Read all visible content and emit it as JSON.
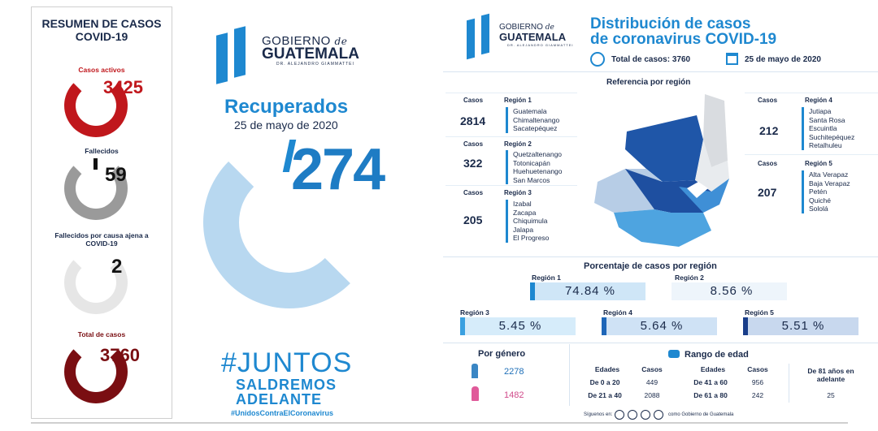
{
  "left": {
    "title": "RESUMEN DE CASOS COVID-19",
    "activos_label": "Casos activos",
    "activos_value": "3425",
    "fallecidos_label": "Fallecidos",
    "fallecidos_value": "59",
    "ajena_label": "Fallecidos por causa ajena a COVID-19",
    "ajena_value": "2",
    "total_label": "Total de casos",
    "total_value": "3760"
  },
  "logo": {
    "line1": "GOBIERNO",
    "de": "de",
    "line2": "GUATEMALA",
    "sub": "DR. ALEJANDRO GIAMMATTEI"
  },
  "middle": {
    "title": "Recuperados",
    "date": "25 de mayo de 2020",
    "value": "274",
    "hashtag": "#JUNTOS",
    "line2": "SALDREMOS",
    "line3": "ADELANTE",
    "footer_tag": "#UnidosContraElCoronavirus"
  },
  "right": {
    "title1": "Distribución de casos",
    "title2": "de coronavirus COVID-19",
    "total_label": "Total de casos: 3760",
    "date": "25 de mayo de 2020",
    "ref_title": "Referencia por región",
    "casos_label": "Casos",
    "regions": [
      {
        "name": "Región 1",
        "cases": "2814",
        "deps": "Guatemala\nChimaltenango\nSacatepéquez"
      },
      {
        "name": "Región 2",
        "cases": "322",
        "deps": "Quetzaltenango\nTotonicapán\nHuehuetenango\nSan Marcos"
      },
      {
        "name": "Región 3",
        "cases": "205",
        "deps": "Izabal\nZacapa\nChiquimula\nJalapa\nEl Progreso"
      },
      {
        "name": "Región 4",
        "cases": "212",
        "deps": "Jutiapa\nSanta Rosa\nEscuintla\nSuchitepéquez\nRetalhuleu"
      },
      {
        "name": "Región 5",
        "cases": "207",
        "deps": "Alta Verapaz\nBaja Verapaz\nPetén\nQuiché\nSololá"
      }
    ],
    "pct_title": "Porcentaje de casos por región",
    "pcts": [
      {
        "label": "Región 1",
        "value": "74.84 %"
      },
      {
        "label": "Región 2",
        "value": "8.56 %"
      },
      {
        "label": "Región 3",
        "value": "5.45 %"
      },
      {
        "label": "Región 4",
        "value": "5.64 %"
      },
      {
        "label": "Región 5",
        "value": "5.51 %"
      }
    ],
    "genero_title": "Por género",
    "male": "2278",
    "female": "1482",
    "edad_title": "Rango de edad",
    "edades_h": "Edades",
    "casos_h": "Casos",
    "ages": [
      {
        "range": "De 0 a 20",
        "cases": "449"
      },
      {
        "range": "De 21 a 40",
        "cases": "2088"
      },
      {
        "range": "De 41 a 60",
        "cases": "956"
      },
      {
        "range": "De 61 a 80",
        "cases": "242"
      }
    ],
    "over81_label": "De 81 años en adelante",
    "over81_value": "25",
    "follow": "Síguenos en:",
    "follow_handle": "como Gobierno de Guatemala"
  },
  "colors": {
    "activos": "#c0171c",
    "fallecidos": "#111111",
    "total": "#7a0e12",
    "blue": "#1e88d0",
    "light_blue": "#b8d8f0"
  }
}
